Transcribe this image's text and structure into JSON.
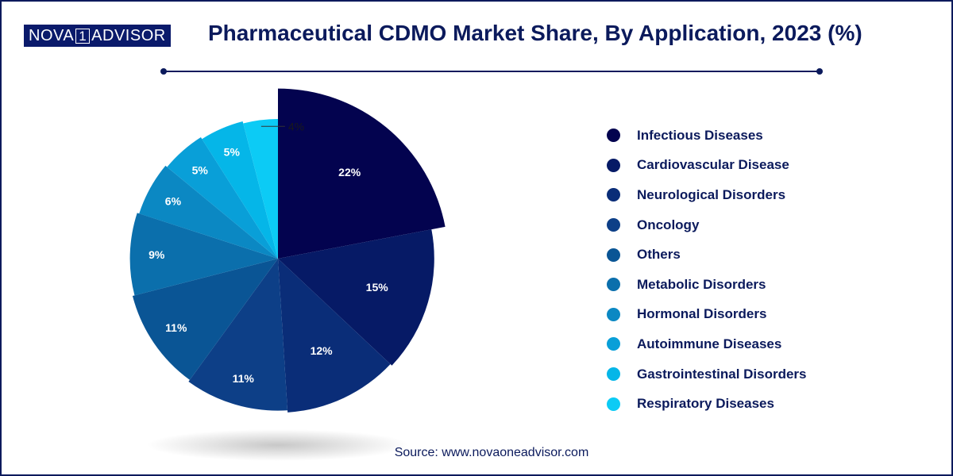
{
  "logo": {
    "left": "NOVA",
    "middle": "1",
    "right": "ADVISOR"
  },
  "header": {
    "title": "Pharmaceutical CDMO Market Share, By Application, 2023 (%)"
  },
  "source": "Source: www.novaoneadvisor.com",
  "chart_data": {
    "type": "pie",
    "title": "Pharmaceutical CDMO Market Share, By Application, 2023 (%)",
    "unit": "%",
    "categories": [
      "Infectious Diseases",
      "Cardiovascular Disease",
      "Neurological Disorders",
      "Oncology",
      "Others",
      "Metabolic Disorders",
      "Hormonal Disorders",
      "Autoimmune Diseases",
      "Gastrointestinal Disorders",
      "Respiratory Diseases"
    ],
    "values": [
      22,
      15,
      12,
      11,
      11,
      9,
      6,
      5,
      5,
      4
    ],
    "labels": [
      "22%",
      "15%",
      "12%",
      "11%",
      "11%",
      "9%",
      "6%",
      "5%",
      "5%",
      "4%"
    ],
    "colors": [
      "#03034f",
      "#061a66",
      "#0a2d78",
      "#0d3f87",
      "#0a5595",
      "#0b6fac",
      "#0b88c3",
      "#099fd8",
      "#05b6e8",
      "#0ccbf5"
    ],
    "label_colors": [
      "#ffffff",
      "#ffffff",
      "#ffffff",
      "#ffffff",
      "#ffffff",
      "#ffffff",
      "#ffffff",
      "#ffffff",
      "#ffffff",
      "#1a1a1a"
    ],
    "legend_position": "right"
  }
}
